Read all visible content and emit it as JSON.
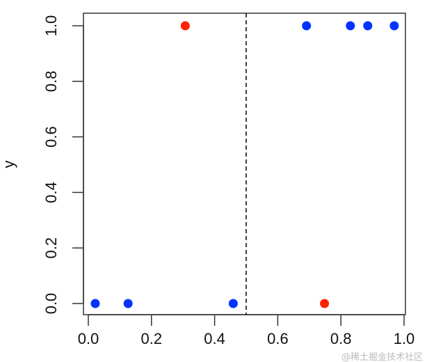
{
  "chart_data": {
    "type": "scatter",
    "title": "",
    "xlabel": "",
    "ylabel": "y",
    "xlim": [
      0,
      1
    ],
    "ylim": [
      0,
      1
    ],
    "grid": false,
    "x_ticks": [
      "0.0",
      "0.2",
      "0.4",
      "0.6",
      "0.8",
      "1.0"
    ],
    "y_ticks": [
      "0.0",
      "0.2",
      "0.4",
      "0.6",
      "0.8",
      "1.0"
    ],
    "threshold_line": {
      "x": 0.5,
      "style": "dashed",
      "color": "#000000"
    },
    "points": [
      {
        "x": 0.022,
        "y": 0,
        "color": "#0033ff"
      },
      {
        "x": 0.126,
        "y": 0,
        "color": "#0033ff"
      },
      {
        "x": 0.459,
        "y": 0,
        "color": "#0033ff"
      },
      {
        "x": 0.748,
        "y": 0,
        "color": "#ff2200"
      },
      {
        "x": 0.307,
        "y": 1,
        "color": "#ff2200"
      },
      {
        "x": 0.691,
        "y": 1,
        "color": "#0033ff"
      },
      {
        "x": 0.83,
        "y": 1,
        "color": "#0033ff"
      },
      {
        "x": 0.885,
        "y": 1,
        "color": "#0033ff"
      },
      {
        "x": 0.969,
        "y": 1,
        "color": "#0033ff"
      }
    ]
  },
  "watermark": "@稀土掘金技术社区"
}
